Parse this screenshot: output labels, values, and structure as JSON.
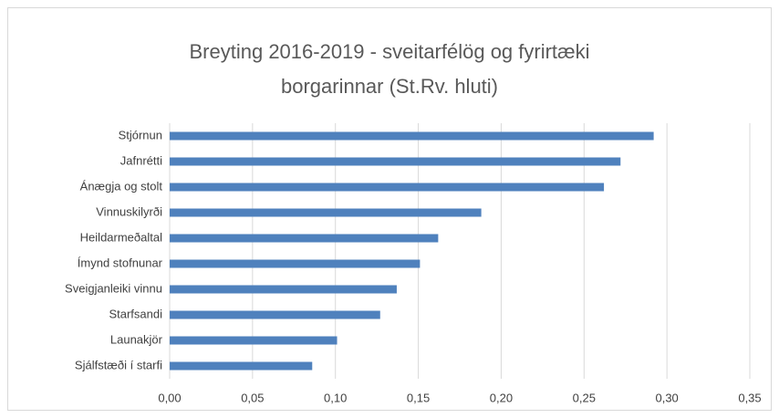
{
  "chart_data": {
    "type": "hbar",
    "title": [
      "Breyting 2016-2019 - sveitarfélög og fyrirtæki",
      "borgarinnar (St.Rv. hluti)"
    ],
    "categories": [
      "Stjórnun",
      "Jafnrétti",
      "Ánægja og stolt",
      "Vinnuskilyrði",
      "Heildarmeðaltal",
      "Ímynd stofnunar",
      "Sveigjanleiki vinnu",
      "Starfsandi",
      "Launakjör",
      "Sjálfstæði í starfi"
    ],
    "values": [
      0.292,
      0.272,
      0.262,
      0.188,
      0.162,
      0.151,
      0.137,
      0.127,
      0.101,
      0.086
    ],
    "color": "#4f81bd",
    "xlim": [
      0,
      0.35
    ],
    "xticks": [
      {
        "value": 0,
        "label": "0,00"
      },
      {
        "value": 0.05,
        "label": "0,05"
      },
      {
        "value": 0.1,
        "label": "0,10"
      },
      {
        "value": 0.15,
        "label": "0,15"
      },
      {
        "value": 0.2,
        "label": "0,20"
      },
      {
        "value": 0.25,
        "label": "0,25"
      },
      {
        "value": 0.3,
        "label": "0,30"
      },
      {
        "value": 0.35,
        "label": "0,35"
      }
    ],
    "grid": true
  }
}
